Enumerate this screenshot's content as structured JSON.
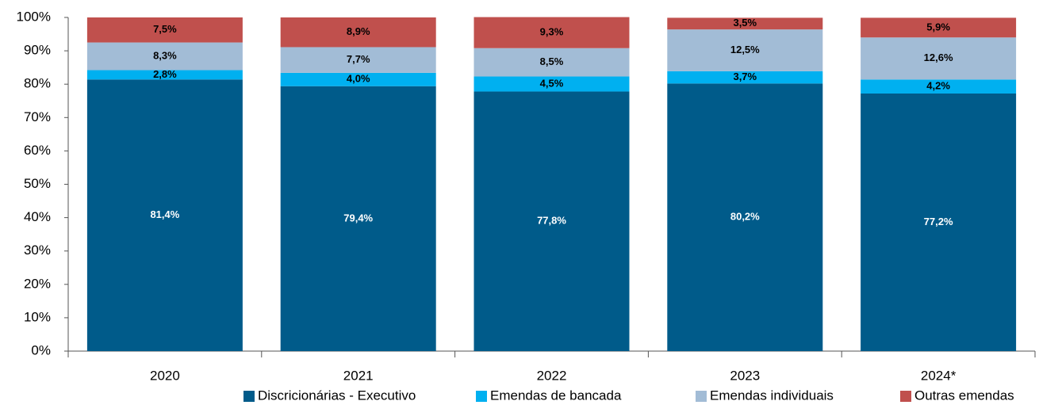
{
  "chart_data": {
    "type": "stacked_bar",
    "categories": [
      "2020",
      "2021",
      "2022",
      "2023",
      "2024*"
    ],
    "series": [
      {
        "name": "Discricionárias - Executivo",
        "color": "#005b8a",
        "label_color": "#ffffff",
        "values": [
          81.4,
          79.4,
          77.8,
          80.2,
          77.2
        ],
        "value_labels": [
          "81,4%",
          "79,4%",
          "77,8%",
          "80,2%",
          "77,2%"
        ]
      },
      {
        "name": "Emendas de bancada",
        "color": "#00b0f0",
        "label_color": "#000000",
        "values": [
          2.8,
          4.0,
          4.5,
          3.7,
          4.2
        ],
        "value_labels": [
          "2,8%",
          "4,0%",
          "4,5%",
          "3,7%",
          "4,2%"
        ]
      },
      {
        "name": "Emendas individuais",
        "color": "#a2bcd6",
        "label_color": "#000000",
        "values": [
          8.3,
          7.7,
          8.5,
          12.5,
          12.6
        ],
        "value_labels": [
          "8,3%",
          "7,7%",
          "8,5%",
          "12,5%",
          "12,6%"
        ]
      },
      {
        "name": "Outras emendas",
        "color": "#c0504d",
        "label_color": "#000000",
        "values": [
          7.5,
          8.9,
          9.3,
          3.5,
          5.9
        ],
        "value_labels": [
          "7,5%",
          "8,9%",
          "9,3%",
          "3,5%",
          "5,9%"
        ]
      }
    ],
    "ylim": [
      0,
      100
    ],
    "yticks": [
      {
        "value": 0,
        "label": "0%"
      },
      {
        "value": 10,
        "label": "10%"
      },
      {
        "value": 20,
        "label": "20%"
      },
      {
        "value": 30,
        "label": "30%"
      },
      {
        "value": 40,
        "label": "40%"
      },
      {
        "value": 50,
        "label": "50%"
      },
      {
        "value": 60,
        "label": "60%"
      },
      {
        "value": 70,
        "label": "70%"
      },
      {
        "value": 80,
        "label": "80%"
      },
      {
        "value": 90,
        "label": "90%"
      },
      {
        "value": 100,
        "label": "100%"
      }
    ],
    "grid": false,
    "legend": "bottom"
  }
}
